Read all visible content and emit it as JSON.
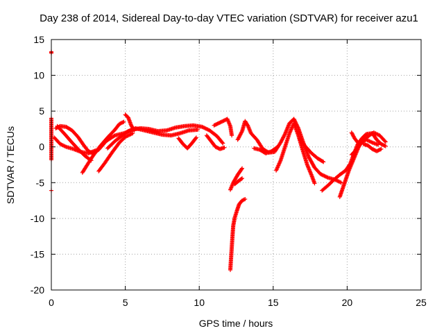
{
  "chart_data": {
    "type": "scatter",
    "title": "Day 238 of 2014, Sidereal Day-to-day VTEC variation (SDTVAR) for receiver azu1",
    "xlabel": "GPS time / hours",
    "ylabel": "SDTVAR / TECUs",
    "xlim": [
      0,
      25
    ],
    "ylim": [
      -20,
      15
    ],
    "x_ticks": [
      0,
      5,
      10,
      15,
      20,
      25
    ],
    "x_tick_labels": [
      "0",
      "5",
      "10",
      "15",
      "20",
      "25"
    ],
    "y_ticks": [
      -20,
      -15,
      -10,
      -5,
      0,
      5,
      10,
      15
    ],
    "y_tick_labels": [
      "-20",
      "-15",
      "-10",
      "-5",
      "0",
      "5",
      "10",
      "15"
    ],
    "grid": true,
    "marker": "+",
    "color": "#ff0000",
    "series": [
      {
        "name": "SDTVAR",
        "tracks": [
          [
            [
              0.0,
              13.3
            ],
            [
              0.0,
              13.1
            ]
          ],
          [
            [
              0.0,
              4.0
            ],
            [
              0.0,
              1.2
            ],
            [
              0.0,
              -1.8
            ]
          ],
          [
            [
              0.0,
              -6.1
            ]
          ],
          [
            [
              0.3,
              2.6
            ],
            [
              0.6,
              2.9
            ],
            [
              1.0,
              2.8
            ],
            [
              1.4,
              2.3
            ],
            [
              1.8,
              1.4
            ],
            [
              2.2,
              0.2
            ],
            [
              2.5,
              -0.6
            ],
            [
              2.8,
              -0.9
            ],
            [
              3.2,
              -0.4
            ],
            [
              3.7,
              0.8
            ],
            [
              4.3,
              1.6
            ],
            [
              4.9,
              1.9
            ],
            [
              5.5,
              2.4
            ],
            [
              6.0,
              2.6
            ],
            [
              6.6,
              2.5
            ],
            [
              7.2,
              2.2
            ],
            [
              7.8,
              2.3
            ],
            [
              8.4,
              2.7
            ],
            [
              9.0,
              2.9
            ],
            [
              9.6,
              3.0
            ],
            [
              10.2,
              2.8
            ],
            [
              10.7,
              2.3
            ],
            [
              11.2,
              1.5
            ],
            [
              11.6,
              0.5
            ]
          ],
          [
            [
              0.2,
              1.3
            ],
            [
              0.6,
              0.4
            ],
            [
              1.0,
              0.0
            ],
            [
              1.5,
              -0.3
            ],
            [
              2.0,
              -0.7
            ],
            [
              2.5,
              -0.9
            ],
            [
              3.0,
              -0.5
            ]
          ],
          [
            [
              0.4,
              2.9
            ],
            [
              0.9,
              1.8
            ],
            [
              1.4,
              0.6
            ],
            [
              1.9,
              -0.5
            ],
            [
              2.3,
              -1.3
            ],
            [
              2.7,
              -1.9
            ]
          ],
          [
            [
              2.1,
              -3.6
            ],
            [
              2.4,
              -2.6
            ],
            [
              2.8,
              -1.3
            ],
            [
              3.3,
              0.1
            ],
            [
              3.8,
              1.3
            ],
            [
              4.3,
              2.4
            ],
            [
              4.6,
              3.2
            ],
            [
              4.9,
              3.5
            ]
          ],
          [
            [
              3.2,
              -3.4
            ],
            [
              3.6,
              -2.3
            ],
            [
              4.1,
              -0.8
            ],
            [
              4.6,
              0.6
            ],
            [
              5.0,
              1.4
            ],
            [
              5.5,
              1.9
            ]
          ],
          [
            [
              3.8,
              -0.2
            ],
            [
              4.3,
              0.8
            ],
            [
              4.8,
              1.6
            ],
            [
              5.2,
              2.2
            ],
            [
              5.7,
              2.6
            ],
            [
              6.3,
              2.3
            ],
            [
              6.9,
              2.0
            ],
            [
              7.5,
              1.7
            ],
            [
              8.1,
              1.6
            ],
            [
              8.7,
              1.9
            ],
            [
              9.3,
              2.3
            ],
            [
              9.9,
              2.4
            ]
          ],
          [
            [
              5.0,
              4.5
            ],
            [
              5.2,
              4.1
            ],
            [
              5.4,
              3.0
            ],
            [
              5.6,
              2.3
            ]
          ],
          [
            [
              8.6,
              1.2
            ],
            [
              8.9,
              0.4
            ],
            [
              9.2,
              -0.2
            ],
            [
              9.5,
              0.5
            ],
            [
              9.8,
              1.3
            ]
          ],
          [
            [
              10.5,
              1.6
            ],
            [
              10.8,
              0.8
            ],
            [
              11.1,
              0.0
            ],
            [
              11.4,
              -0.3
            ],
            [
              11.7,
              -0.1
            ]
          ],
          [
            [
              11.0,
              3.0
            ],
            [
              11.3,
              3.3
            ],
            [
              11.6,
              3.6
            ],
            [
              11.9,
              3.9
            ],
            [
              12.1,
              2.9
            ],
            [
              12.2,
              1.6
            ]
          ],
          [
            [
              12.1,
              -6.0
            ],
            [
              12.3,
              -5.0
            ],
            [
              12.6,
              -3.9
            ],
            [
              12.9,
              -3.0
            ]
          ],
          [
            [
              12.4,
              -5.2
            ],
            [
              12.7,
              -4.7
            ],
            [
              12.9,
              -4.4
            ]
          ],
          [
            [
              12.1,
              -17.2
            ],
            [
              12.15,
              -15.6
            ],
            [
              12.2,
              -14.0
            ],
            [
              12.25,
              -12.4
            ],
            [
              12.3,
              -11.0
            ],
            [
              12.4,
              -9.9
            ],
            [
              12.55,
              -8.9
            ],
            [
              12.7,
              -8.0
            ],
            [
              12.9,
              -7.5
            ],
            [
              13.1,
              -7.3
            ]
          ],
          [
            [
              12.6,
              1.0
            ],
            [
              12.9,
              2.2
            ],
            [
              13.1,
              3.6
            ],
            [
              13.3,
              2.9
            ],
            [
              13.5,
              1.9
            ],
            [
              13.9,
              1.0
            ],
            [
              14.3,
              -0.3
            ],
            [
              14.7,
              -0.8
            ],
            [
              15.1,
              -0.7
            ],
            [
              15.5,
              0.6
            ],
            [
              15.8,
              1.8
            ],
            [
              16.1,
              3.3
            ],
            [
              16.4,
              3.9
            ],
            [
              16.7,
              2.6
            ],
            [
              17.0,
              0.8
            ],
            [
              17.4,
              -1.4
            ],
            [
              17.8,
              -2.9
            ],
            [
              18.2,
              -3.8
            ],
            [
              18.7,
              -4.3
            ],
            [
              19.2,
              -4.6
            ],
            [
              19.6,
              -5.0
            ]
          ],
          [
            [
              13.7,
              -0.2
            ],
            [
              14.1,
              -0.4
            ],
            [
              14.5,
              -0.9
            ],
            [
              14.9,
              -0.6
            ],
            [
              15.3,
              0.0
            ]
          ],
          [
            [
              15.2,
              -3.3
            ],
            [
              15.5,
              -1.9
            ],
            [
              15.8,
              0.0
            ],
            [
              16.1,
              1.9
            ],
            [
              16.4,
              3.3
            ],
            [
              16.7,
              1.6
            ],
            [
              17.0,
              -0.5
            ],
            [
              17.3,
              -2.5
            ],
            [
              17.6,
              -4.0
            ],
            [
              17.8,
              -5.1
            ]
          ],
          [
            [
              16.8,
              1.1
            ],
            [
              17.2,
              0.0
            ],
            [
              17.6,
              -0.9
            ],
            [
              18.0,
              -1.6
            ],
            [
              18.4,
              -2.1
            ]
          ],
          [
            [
              18.3,
              -6.1
            ],
            [
              18.7,
              -5.4
            ],
            [
              19.1,
              -4.6
            ],
            [
              19.5,
              -3.9
            ],
            [
              19.9,
              -3.3
            ],
            [
              20.2,
              -2.4
            ],
            [
              20.4,
              -1.3
            ],
            [
              20.7,
              0.3
            ],
            [
              21.0,
              1.2
            ],
            [
              21.3,
              1.8
            ],
            [
              21.7,
              1.9
            ],
            [
              22.0,
              1.0
            ],
            [
              22.3,
              0.4
            ],
            [
              22.6,
              0.1
            ]
          ],
          [
            [
              19.5,
              -7.0
            ],
            [
              19.7,
              -5.8
            ],
            [
              19.9,
              -4.6
            ],
            [
              20.1,
              -3.4
            ],
            [
              20.3,
              -2.4
            ],
            [
              20.6,
              -0.9
            ],
            [
              20.9,
              0.6
            ],
            [
              21.3,
              1.0
            ],
            [
              21.7,
              0.6
            ],
            [
              22.1,
              0.3
            ]
          ],
          [
            [
              20.3,
              -1.1
            ],
            [
              20.7,
              -0.2
            ],
            [
              21.1,
              0.9
            ],
            [
              21.5,
              1.6
            ],
            [
              21.8,
              2.0
            ],
            [
              22.2,
              1.6
            ],
            [
              22.6,
              0.7
            ]
          ],
          [
            [
              21.1,
              0.4
            ],
            [
              21.4,
              0.2
            ],
            [
              21.7,
              -0.3
            ],
            [
              22.0,
              -0.6
            ],
            [
              22.3,
              -0.3
            ]
          ],
          [
            [
              20.3,
              2.0
            ],
            [
              20.5,
              1.2
            ],
            [
              20.8,
              0.4
            ]
          ]
        ]
      }
    ]
  }
}
